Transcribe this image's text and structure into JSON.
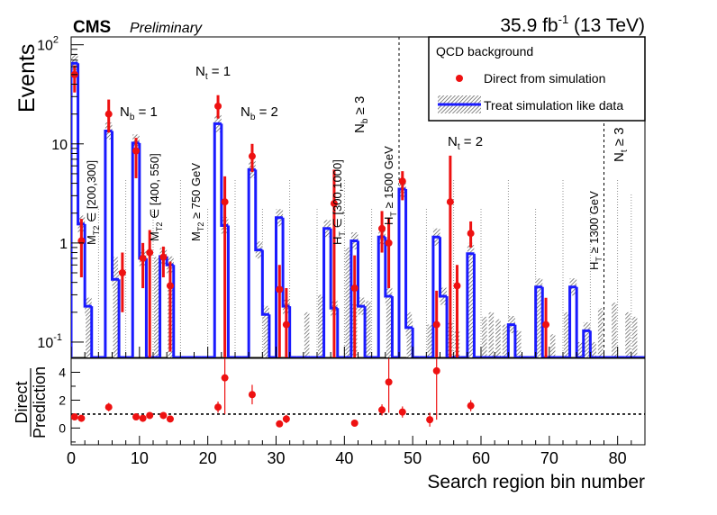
{
  "header": {
    "experiment": "CMS",
    "status": "Preliminary",
    "lumi_value": "35.9 fb",
    "lumi_exp": "-1",
    "energy": " (13 TeV)"
  },
  "legend": {
    "title": "QCD background",
    "direct": "Direct from simulation",
    "treat": "Treat simulation like data"
  },
  "annotations": {
    "nt1": {
      "main": "N",
      "sub": "t",
      "rest": " = 1"
    },
    "nt2": {
      "main": "N",
      "sub": "t",
      "rest": " = 2"
    },
    "nt3": {
      "main": "N",
      "sub": "t",
      "rest": " ≥ 3"
    },
    "nb1": {
      "main": "N",
      "sub": "b",
      "rest": " = 1"
    },
    "nb2": {
      "main": "N",
      "sub": "b",
      "rest": " = 2"
    },
    "nb3": {
      "main": "N",
      "sub": "b",
      "rest": " ≥ 3"
    },
    "mt2a": {
      "main": "M",
      "sub": "T2",
      "rest": " ∈ [200,300]"
    },
    "mt2b": {
      "main": "M",
      "sub": "T2",
      "rest": " ∈ [400, 550]"
    },
    "mt2c": {
      "main": "M",
      "sub": "T2",
      "rest": " ≥ 750 GeV"
    },
    "hta": {
      "main": "H",
      "sub": "T",
      "rest": " ∈ [300,1000]"
    },
    "htb": {
      "main": "H",
      "sub": "T",
      "rest": " ≥ 1500 GeV"
    },
    "htc": {
      "main": "H",
      "sub": "T",
      "rest": " ≥ 1300 GeV"
    }
  },
  "chart_data": [
    {
      "type": "step",
      "panel": "main",
      "ylabel": "Events",
      "xlim": [
        0,
        84
      ],
      "ylim": [
        0.07,
        120
      ],
      "yscale": "log",
      "yticks": [
        {
          "label": "10",
          "exp": "-1"
        },
        {
          "label": "1",
          "exp": ""
        },
        {
          "label": "10",
          "exp": ""
        },
        {
          "label": "10",
          "exp": "2"
        }
      ],
      "series": [
        {
          "name": "Treat simulation like data",
          "x": [
            1,
            2,
            3,
            4,
            5,
            6,
            7,
            8,
            9,
            10,
            11,
            12,
            13,
            14,
            15,
            16,
            17,
            18,
            19,
            20,
            21,
            22,
            23,
            24,
            25,
            26,
            27,
            28,
            29,
            30,
            31,
            32,
            33,
            34,
            35,
            36,
            37,
            38,
            39,
            40,
            41,
            42,
            43,
            44,
            45,
            46,
            47,
            48,
            49,
            50,
            51,
            52,
            53,
            54,
            55,
            56,
            57,
            58,
            59,
            60,
            61,
            62,
            63,
            64,
            65,
            66,
            67,
            68,
            69,
            70,
            71,
            72,
            73,
            74,
            75,
            76,
            77,
            78,
            79,
            80,
            81,
            82,
            83,
            84
          ],
          "values": [
            65,
            1.55,
            0.23,
            0.07,
            0.07,
            13.5,
            0.43,
            0.07,
            0.07,
            10.2,
            0.7,
            0.07,
            0.07,
            0.73,
            0.6,
            0.07,
            0.07,
            0.07,
            0.07,
            0.07,
            0.07,
            16,
            1.5,
            0.07,
            0.07,
            0.07,
            5.5,
            0.85,
            0.19,
            0.07,
            1.8,
            0.23,
            0.07,
            0.07,
            0.07,
            0.07,
            0.07,
            1.4,
            0.22,
            0.07,
            0.07,
            1.05,
            0.23,
            0.07,
            0.07,
            1.15,
            0.29,
            0.07,
            3.5,
            0.14,
            0.07,
            0.07,
            0.07,
            1.15,
            0.29,
            0.07,
            0.07,
            0.07,
            0.78,
            0.07,
            0.07,
            0.07,
            0.07,
            0.07,
            0.15,
            0.07,
            0.07,
            0.07,
            0.36,
            0.07,
            0.07,
            0.07,
            0.07,
            0.36,
            0.07,
            0.13,
            0.07,
            0.07,
            0.07,
            0.07,
            0.07,
            0.07,
            0.07,
            0.07
          ],
          "hatch_values": [
            0,
            0,
            0.25,
            0.07,
            0,
            0,
            0.72,
            0,
            0,
            0,
            0,
            0,
            0.72,
            0,
            0.38,
            0,
            0,
            0,
            0,
            0,
            0,
            0,
            0,
            0,
            0,
            0,
            0,
            0,
            0.16,
            0,
            0,
            0,
            0,
            0,
            0.2,
            0,
            0.3,
            0,
            0,
            0,
            0.9,
            0.24,
            0,
            0.26,
            0.07,
            0,
            0.25,
            0,
            0,
            0.2,
            0,
            0,
            0.15,
            0,
            0,
            0.16,
            0.13,
            0,
            1.0,
            0,
            0.18,
            0.2,
            0.17,
            0.15,
            0,
            0.13,
            0,
            0,
            0.36,
            0,
            0.12,
            0,
            0.2,
            0,
            0.1,
            0.15,
            0.1,
            0.22,
            0,
            0.25,
            0,
            0.2,
            0.18,
            0
          ]
        },
        {
          "name": "Direct from simulation",
          "points": [
            {
              "x": 0.5,
              "y": 50,
              "ylo": 33,
              "yhi": 62
            },
            {
              "x": 1.5,
              "y": 1.05,
              "ylo": 0.45,
              "yhi": 1.75
            },
            {
              "x": 5.5,
              "y": 20,
              "ylo": 13,
              "yhi": 28
            },
            {
              "x": 7.5,
              "y": 0.5,
              "ylo": 0.2,
              "yhi": 0.8
            },
            {
              "x": 9.5,
              "y": 8.5,
              "ylo": 4.5,
              "yhi": 11.5
            },
            {
              "x": 10.5,
              "y": 0.7,
              "ylo": 0.35,
              "yhi": 1.0
            },
            {
              "x": 11.5,
              "y": 0.8,
              "ylo": 0.07,
              "yhi": 1.35
            },
            {
              "x": 13.5,
              "y": 0.72,
              "ylo": 0.45,
              "yhi": 0.92
            },
            {
              "x": 14.5,
              "y": 0.37,
              "ylo": 0.08,
              "yhi": 0.65
            },
            {
              "x": 21.5,
              "y": 24,
              "ylo": 18,
              "yhi": 31
            },
            {
              "x": 22.5,
              "y": 2.6,
              "ylo": 0.07,
              "yhi": 4.7
            },
            {
              "x": 26.5,
              "y": 7.5,
              "ylo": 5.2,
              "yhi": 10
            },
            {
              "x": 30.5,
              "y": 0.34,
              "ylo": 0.07,
              "yhi": 0.6
            },
            {
              "x": 31.5,
              "y": 0.15,
              "ylo": 0.07,
              "yhi": 0.35
            },
            {
              "x": 38.5,
              "y": 2.5,
              "ylo": 0.07,
              "yhi": 5.5
            },
            {
              "x": 41.5,
              "y": 0.35,
              "ylo": 0.07,
              "yhi": 0.75
            },
            {
              "x": 45.5,
              "y": 1.4,
              "ylo": 0.8,
              "yhi": 2.1
            },
            {
              "x": 46.5,
              "y": 1.0,
              "ylo": 0.35,
              "yhi": 1.8
            },
            {
              "x": 48.5,
              "y": 4.2,
              "ylo": 2.7,
              "yhi": 5.3
            },
            {
              "x": 53.5,
              "y": 0.15,
              "ylo": 0.07,
              "yhi": 0.33
            },
            {
              "x": 55.5,
              "y": 2.6,
              "ylo": 0.07,
              "yhi": 7.6
            },
            {
              "x": 56.5,
              "y": 0.37,
              "ylo": 0.07,
              "yhi": 0.6
            },
            {
              "x": 58.5,
              "y": 1.25,
              "ylo": 0.9,
              "yhi": 1.65
            },
            {
              "x": 69.5,
              "y": 0.15,
              "ylo": 0.07,
              "yhi": 0.28
            }
          ]
        }
      ]
    },
    {
      "type": "scatter",
      "panel": "ratio",
      "ylabel": [
        "Direct",
        "Prediction"
      ],
      "xlabel": "Search region bin number",
      "xlim": [
        0,
        84
      ],
      "ylim": [
        -1.2,
        5
      ],
      "yticks": [
        "0",
        "2",
        "4"
      ],
      "xticks": [
        "0",
        "10",
        "20",
        "30",
        "40",
        "50",
        "60",
        "70",
        "80"
      ],
      "reference_line": 1,
      "points": [
        {
          "x": 0.5,
          "y": 0.8,
          "err": 0.1
        },
        {
          "x": 1.5,
          "y": 0.7,
          "err": 0.1
        },
        {
          "x": 5.5,
          "y": 1.5,
          "err": 0.3
        },
        {
          "x": 9.5,
          "y": 0.8,
          "err": 0.2
        },
        {
          "x": 10.5,
          "y": 0.7,
          "err": 0.1
        },
        {
          "x": 11.5,
          "y": 0.9,
          "err": 0.2
        },
        {
          "x": 13.5,
          "y": 0.9,
          "err": 0.2
        },
        {
          "x": 14.5,
          "y": 0.65,
          "err": 0.1
        },
        {
          "x": 21.5,
          "y": 1.5,
          "err": 0.4
        },
        {
          "x": 22.5,
          "y": 3.6,
          "err": 2.6
        },
        {
          "x": 26.5,
          "y": 2.4,
          "err": 0.7
        },
        {
          "x": 30.5,
          "y": 0.3,
          "err": 0.1
        },
        {
          "x": 31.5,
          "y": 0.65,
          "err": 0.3
        },
        {
          "x": 41.5,
          "y": 0.35,
          "err": 0.2
        },
        {
          "x": 45.5,
          "y": 1.3,
          "err": 0.4
        },
        {
          "x": 46.5,
          "y": 3.3,
          "err": 2.2
        },
        {
          "x": 48.5,
          "y": 1.15,
          "err": 0.4
        },
        {
          "x": 52.5,
          "y": 0.6,
          "err": 0.5
        },
        {
          "x": 53.5,
          "y": 4.1,
          "err": 3.5
        },
        {
          "x": 58.5,
          "y": 1.6,
          "err": 0.4
        }
      ]
    }
  ],
  "colors": {
    "prediction_line": "#1a1aff",
    "direct_points": "#ee1111",
    "hatch": "#555555"
  }
}
